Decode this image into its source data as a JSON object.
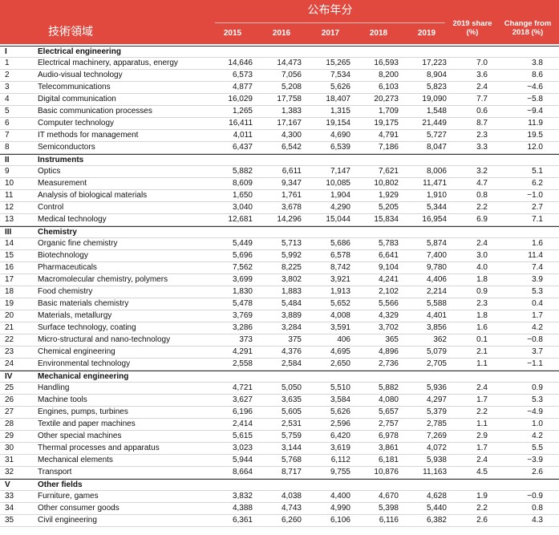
{
  "header": {
    "field": "技術領域",
    "years_label": "公布年分",
    "years": [
      "2015",
      "2016",
      "2017",
      "2018",
      "2019"
    ],
    "share": "2019 share (%)",
    "change": "Change from 2018 (%)"
  },
  "sections": [
    {
      "roman": "I",
      "name": "Electrical engineering",
      "rows": [
        [
          "1",
          "Electrical machinery, apparatus, energy",
          "14,646",
          "14,473",
          "15,265",
          "16,593",
          "17,223",
          "7.0",
          "3.8"
        ],
        [
          "2",
          "Audio-visual technology",
          "6,573",
          "7,056",
          "7,534",
          "8,200",
          "8,904",
          "3.6",
          "8.6"
        ],
        [
          "3",
          "Telecommunications",
          "4,877",
          "5,208",
          "5,626",
          "6,103",
          "5,823",
          "2.4",
          "−4.6"
        ],
        [
          "4",
          "Digital communication",
          "16,029",
          "17,758",
          "18,407",
          "20,273",
          "19,090",
          "7.7",
          "−5.8"
        ],
        [
          "5",
          "Basic communication processes",
          "1,265",
          "1,383",
          "1,315",
          "1,709",
          "1,548",
          "0.6",
          "−9.4"
        ],
        [
          "6",
          "Computer technology",
          "16,411",
          "17,167",
          "19,154",
          "19,175",
          "21,449",
          "8.7",
          "11.9"
        ],
        [
          "7",
          "IT methods for management",
          "4,011",
          "4,300",
          "4,690",
          "4,791",
          "5,727",
          "2.3",
          "19.5"
        ],
        [
          "8",
          "Semiconductors",
          "6,437",
          "6,542",
          "6,539",
          "7,186",
          "8,047",
          "3.3",
          "12.0"
        ]
      ]
    },
    {
      "roman": "II",
      "name": "Instruments",
      "rows": [
        [
          "9",
          "Optics",
          "5,882",
          "6,611",
          "7,147",
          "7,621",
          "8,006",
          "3.2",
          "5.1"
        ],
        [
          "10",
          "Measurement",
          "8,609",
          "9,347",
          "10,085",
          "10,802",
          "11,471",
          "4.7",
          "6.2"
        ],
        [
          "11",
          "Analysis of biological materials",
          "1,650",
          "1,761",
          "1,904",
          "1,929",
          "1,910",
          "0.8",
          "−1.0"
        ],
        [
          "12",
          "Control",
          "3,040",
          "3,678",
          "4,290",
          "5,205",
          "5,344",
          "2.2",
          "2.7"
        ],
        [
          "13",
          "Medical technology",
          "12,681",
          "14,296",
          "15,044",
          "15,834",
          "16,954",
          "6.9",
          "7.1"
        ]
      ]
    },
    {
      "roman": "III",
      "name": "Chemistry",
      "rows": [
        [
          "14",
          "Organic fine chemistry",
          "5,449",
          "5,713",
          "5,686",
          "5,783",
          "5,874",
          "2.4",
          "1.6"
        ],
        [
          "15",
          "Biotechnology",
          "5,696",
          "5,992",
          "6,578",
          "6,641",
          "7,400",
          "3.0",
          "11.4"
        ],
        [
          "16",
          "Pharmaceuticals",
          "7,562",
          "8,225",
          "8,742",
          "9,104",
          "9,780",
          "4.0",
          "7.4"
        ],
        [
          "17",
          "Macromolecular chemistry, polymers",
          "3,699",
          "3,802",
          "3,921",
          "4,241",
          "4,406",
          "1.8",
          "3.9"
        ],
        [
          "18",
          "Food chemistry",
          "1,830",
          "1,883",
          "1,913",
          "2,102",
          "2,214",
          "0.9",
          "5.3"
        ],
        [
          "19",
          "Basic materials chemistry",
          "5,478",
          "5,484",
          "5,652",
          "5,566",
          "5,588",
          "2.3",
          "0.4"
        ],
        [
          "20",
          "Materials, metallurgy",
          "3,769",
          "3,889",
          "4,008",
          "4,329",
          "4,401",
          "1.8",
          "1.7"
        ],
        [
          "21",
          "Surface technology, coating",
          "3,286",
          "3,284",
          "3,591",
          "3,702",
          "3,856",
          "1.6",
          "4.2"
        ],
        [
          "22",
          "Micro-structural and nano-technology",
          "373",
          "375",
          "406",
          "365",
          "362",
          "0.1",
          "−0.8"
        ],
        [
          "23",
          "Chemical engineering",
          "4,291",
          "4,376",
          "4,695",
          "4,896",
          "5,079",
          "2.1",
          "3.7"
        ],
        [
          "24",
          "Environmental technology",
          "2,558",
          "2,584",
          "2,650",
          "2,736",
          "2,705",
          "1.1",
          "−1.1"
        ]
      ]
    },
    {
      "roman": "IV",
      "name": "Mechanical engineering",
      "rows": [
        [
          "25",
          "Handling",
          "4,721",
          "5,050",
          "5,510",
          "5,882",
          "5,936",
          "2.4",
          "0.9"
        ],
        [
          "26",
          "Machine tools",
          "3,627",
          "3,635",
          "3,584",
          "4,080",
          "4,297",
          "1.7",
          "5.3"
        ],
        [
          "27",
          "Engines, pumps, turbines",
          "6,196",
          "5,605",
          "5,626",
          "5,657",
          "5,379",
          "2.2",
          "−4.9"
        ],
        [
          "28",
          "Textile and paper machines",
          "2,414",
          "2,531",
          "2,596",
          "2,757",
          "2,785",
          "1.1",
          "1.0"
        ],
        [
          "29",
          "Other special machines",
          "5,615",
          "5,759",
          "6,420",
          "6,978",
          "7,269",
          "2.9",
          "4.2"
        ],
        [
          "30",
          "Thermal processes and apparatus",
          "3,023",
          "3,144",
          "3,619",
          "3,861",
          "4,072",
          "1.7",
          "5.5"
        ],
        [
          "31",
          "Mechanical elements",
          "5,944",
          "5,768",
          "6,112",
          "6,181",
          "5,938",
          "2.4",
          "−3.9"
        ],
        [
          "32",
          "Transport",
          "8,664",
          "8,717",
          "9,755",
          "10,876",
          "11,163",
          "4.5",
          "2.6"
        ]
      ]
    },
    {
      "roman": "V",
      "name": "Other fields",
      "rows": [
        [
          "33",
          "Furniture, games",
          "3,832",
          "4,038",
          "4,400",
          "4,670",
          "4,628",
          "1.9",
          "−0.9"
        ],
        [
          "34",
          "Other consumer goods",
          "4,388",
          "4,743",
          "4,990",
          "5,398",
          "5,440",
          "2.2",
          "0.8"
        ],
        [
          "35",
          "Civil engineering",
          "6,361",
          "6,260",
          "6,106",
          "6,116",
          "6,382",
          "2.6",
          "4.3"
        ]
      ]
    }
  ]
}
